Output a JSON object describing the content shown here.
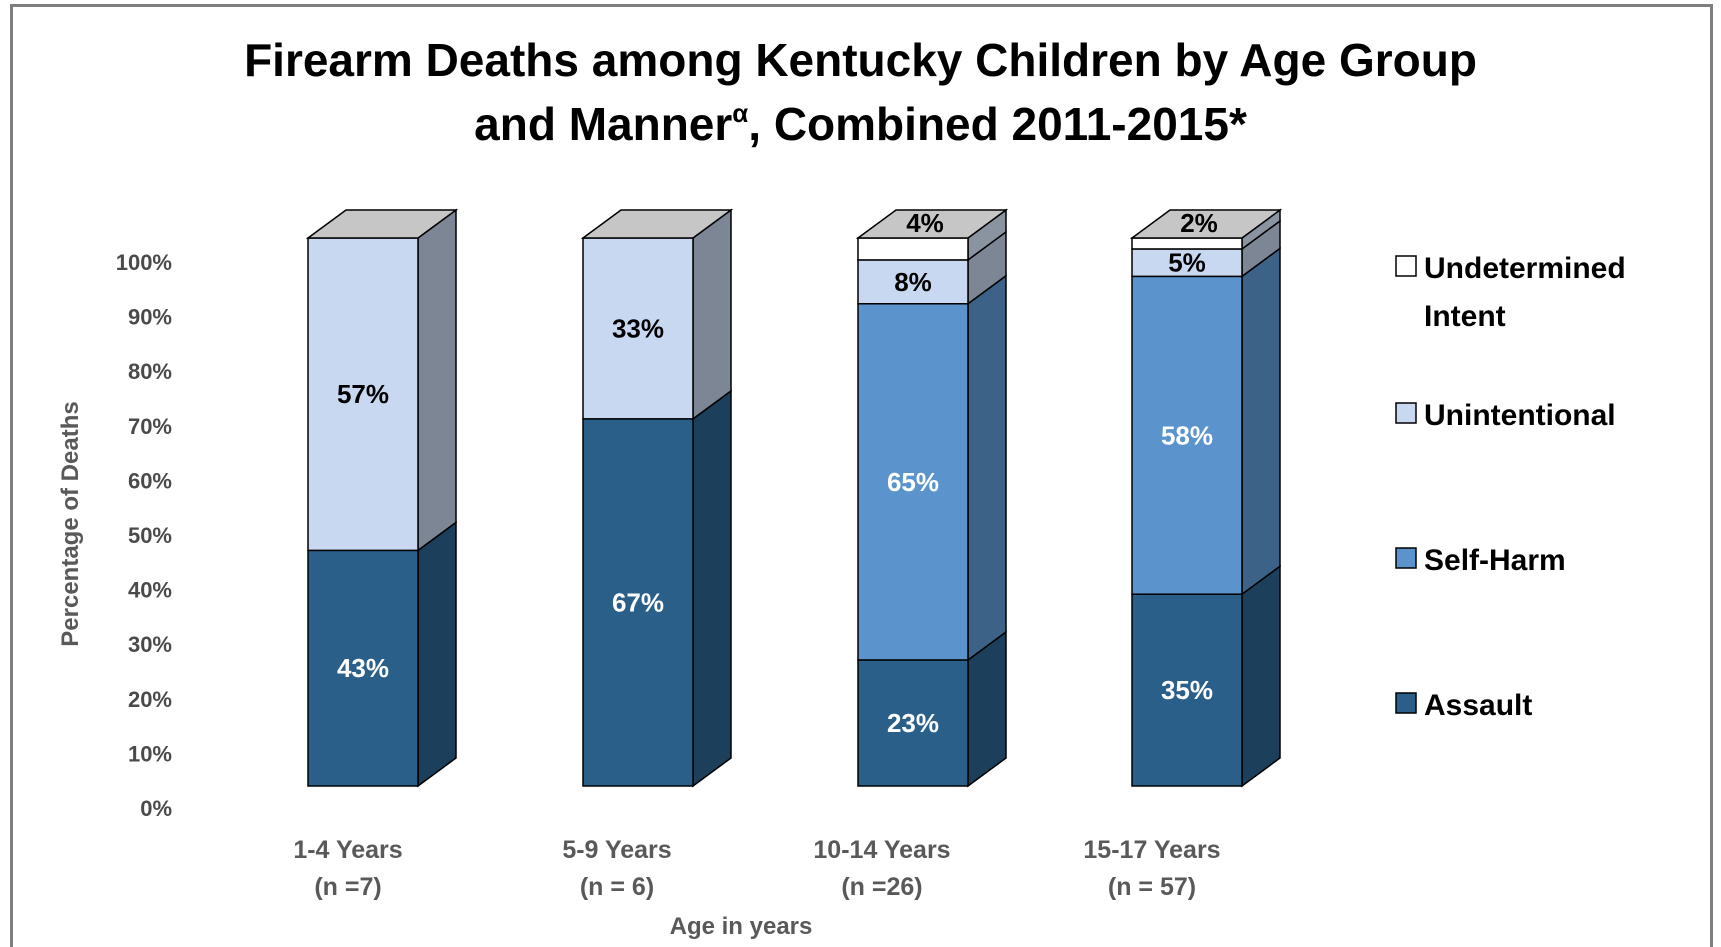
{
  "chart_data": {
    "type": "bar",
    "stacked": true,
    "three_d": true,
    "title_line1": "Firearm Deaths among Kentucky Children by Age Group",
    "title_line2_main": "and Manner",
    "title_superscript": "α",
    "title_line2_rest": ", Combined 2011-2015*",
    "xlabel": "Age in years",
    "ylabel": "Percentage of Deaths",
    "ylim": [
      0,
      100
    ],
    "yticks": [
      "0%",
      "10%",
      "20%",
      "30%",
      "40%",
      "50%",
      "60%",
      "70%",
      "80%",
      "90%",
      "100%"
    ],
    "categories": [
      {
        "line1": "1-4 Years",
        "line2": "(n =7)"
      },
      {
        "line1": "5-9 Years",
        "line2": "(n = 6)"
      },
      {
        "line1": "10-14 Years",
        "line2": "(n =26)"
      },
      {
        "line1": "15-17 Years",
        "line2": "(n = 57)"
      }
    ],
    "series": [
      {
        "name": "Assault",
        "color": "#2a5f8a",
        "values": [
          43,
          67,
          23,
          35
        ],
        "labels": [
          "43%",
          "67%",
          "23%",
          "35%"
        ],
        "label_color": "#ffffff"
      },
      {
        "name": "Self-Harm",
        "color": "#5b94cc",
        "values": [
          0,
          0,
          65,
          58
        ],
        "labels": [
          "",
          "",
          "65%",
          "58%"
        ],
        "label_color": "#ffffff"
      },
      {
        "name": "Unintentional",
        "color": "#c8d8f0",
        "values": [
          57,
          33,
          8,
          5
        ],
        "labels": [
          "57%",
          "33%",
          "8%",
          "5%"
        ],
        "label_color": "#000000"
      },
      {
        "name": "Undetermined Intent",
        "legend_lines": [
          "Undetermined",
          "Intent"
        ],
        "color": "#ffffff",
        "values": [
          0,
          0,
          4,
          2
        ],
        "labels": [
          "",
          "",
          "4%",
          "2%"
        ],
        "label_color": "#000000"
      }
    ],
    "legend_position": "right",
    "grid": false
  }
}
